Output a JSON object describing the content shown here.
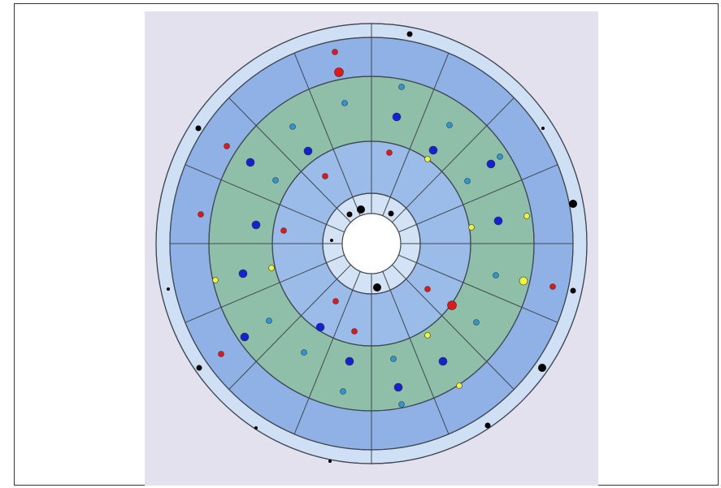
{
  "colors": {
    "background": "#e4e1ee",
    "outer_ring": "#cfe0f5",
    "blue_zone": "#8fb1e6",
    "green_zone": "#8fbfa8",
    "inner_blue_zone": "#9bbbe8",
    "hub_ring": "#d3e2f4",
    "hole": "#ffffff",
    "line": "#404852",
    "dots": {
      "red": "#e81515",
      "dark_blue": "#1320d8",
      "light_blue": "#2c96d8",
      "yellow": "#f2f23a",
      "black": "#000000"
    }
  },
  "diagram": {
    "sectors": 16,
    "sector_offset_deg": 0
  }
}
